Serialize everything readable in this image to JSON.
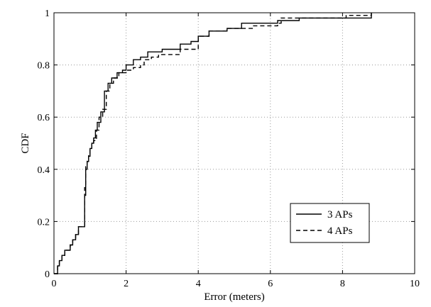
{
  "chart_data": {
    "type": "line",
    "title": "",
    "xlabel": "Error (meters)",
    "ylabel": "CDF",
    "xlim": [
      0,
      10
    ],
    "ylim": [
      0,
      1
    ],
    "x_ticks": [
      "0",
      "2",
      "4",
      "6",
      "8",
      "10"
    ],
    "y_ticks": [
      "0",
      "0.2",
      "0.4",
      "0.6",
      "0.8",
      "1"
    ],
    "grid": true,
    "legend_position": "bottom-right",
    "series": [
      {
        "name": "3 APs",
        "style": "solid",
        "color": "#000000",
        "x": [
          0.0,
          0.1,
          0.15,
          0.22,
          0.3,
          0.45,
          0.52,
          0.6,
          0.68,
          0.85,
          0.88,
          0.92,
          0.96,
          1.0,
          1.05,
          1.1,
          1.15,
          1.2,
          1.3,
          1.4,
          1.5,
          1.6,
          1.75,
          1.9,
          2.0,
          2.2,
          2.4,
          2.6,
          2.8,
          3.0,
          3.5,
          3.8,
          4.0,
          4.3,
          4.8,
          5.2,
          6.2,
          6.8,
          8.8
        ],
        "y": [
          0.0,
          0.03,
          0.05,
          0.07,
          0.09,
          0.11,
          0.13,
          0.15,
          0.18,
          0.3,
          0.4,
          0.43,
          0.45,
          0.48,
          0.5,
          0.52,
          0.55,
          0.58,
          0.62,
          0.7,
          0.73,
          0.75,
          0.77,
          0.78,
          0.8,
          0.82,
          0.83,
          0.85,
          0.85,
          0.86,
          0.88,
          0.89,
          0.91,
          0.93,
          0.94,
          0.96,
          0.97,
          0.98,
          1.0
        ]
      },
      {
        "name": "4 APs",
        "style": "dashed",
        "color": "#000000",
        "x": [
          0.0,
          0.1,
          0.15,
          0.22,
          0.3,
          0.45,
          0.52,
          0.6,
          0.68,
          0.85,
          0.88,
          0.92,
          0.96,
          1.0,
          1.05,
          1.1,
          1.18,
          1.25,
          1.35,
          1.45,
          1.55,
          1.65,
          1.8,
          2.0,
          2.2,
          2.4,
          2.5,
          2.7,
          2.9,
          3.5,
          4.0,
          4.3,
          4.8,
          5.5,
          6.2,
          6.3,
          8.1,
          8.8
        ],
        "y": [
          0.0,
          0.03,
          0.05,
          0.07,
          0.09,
          0.11,
          0.13,
          0.15,
          0.18,
          0.33,
          0.41,
          0.44,
          0.46,
          0.48,
          0.5,
          0.51,
          0.55,
          0.6,
          0.63,
          0.7,
          0.73,
          0.75,
          0.77,
          0.78,
          0.79,
          0.8,
          0.82,
          0.83,
          0.84,
          0.86,
          0.91,
          0.93,
          0.94,
          0.95,
          0.96,
          0.98,
          0.99,
          1.0
        ]
      }
    ]
  }
}
